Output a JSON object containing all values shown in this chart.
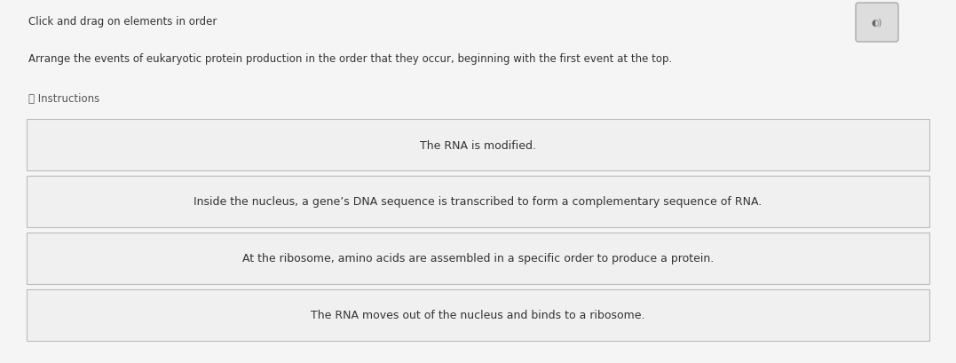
{
  "title_line1": "Click and drag on elements in order",
  "title_line2": "Arrange the events of eukaryotic protein production in the order that they occur, beginning with the first event at the top.",
  "instructions_label": "ⓘ Instructions",
  "items": [
    "The RNA is modified.",
    "Inside the nucleus, a gene’s DNA sequence is transcribed to form a complementary sequence of RNA.",
    "At the ribosome, amino acids are assembled in a specific order to produce a protein.",
    "The RNA moves out of the nucleus and binds to a ribosome."
  ],
  "bg_color": "#f5f5f5",
  "box_face_color": "#f0f0f0",
  "box_edge_color": "#bbbbbb",
  "text_color": "#333333",
  "instructions_color": "#555555",
  "title1_fontsize": 8.5,
  "title2_fontsize": 8.5,
  "instructions_fontsize": 8.5,
  "item_fontsize": 9.0,
  "fig_width": 10.77,
  "fig_height": 4.1,
  "speaker_box_color": "#dddddd",
  "speaker_box_edge": "#aaaaaa"
}
